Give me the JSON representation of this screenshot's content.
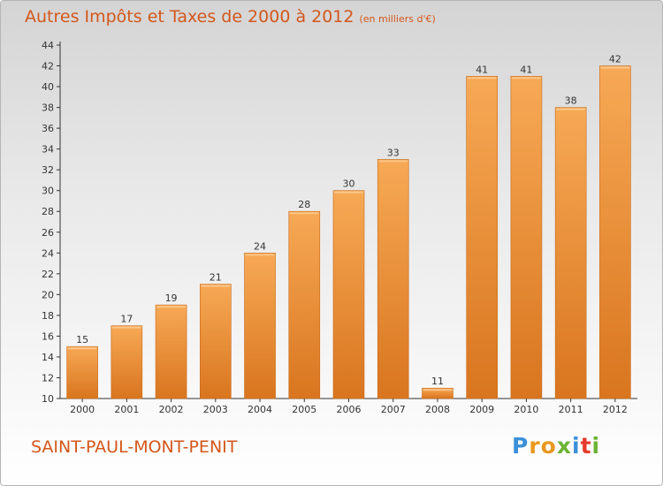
{
  "title": "Autres Impôts et Taxes de 2000 à 2012",
  "unit_note": "(en milliers d'€)",
  "commune": "SAINT-PAUL-MONT-PENIT",
  "logo": {
    "text": "Proxiti",
    "letter_colors": [
      "#3a8fd8",
      "#e9981f",
      "#e9981f",
      "#6cb335",
      "#3a8fd8",
      "#e53b2a",
      "#6cb335"
    ]
  },
  "colors": {
    "bar_light": "#f7a955",
    "bar_dark": "#d9751f",
    "text_accent": "#d4571b",
    "axis": "#333333"
  },
  "chart_data": {
    "type": "bar",
    "title": "Autres Impôts et Taxes de 2000 à 2012",
    "xlabel": "",
    "ylabel": "",
    "categories": [
      "2000",
      "2001",
      "2002",
      "2003",
      "2004",
      "2005",
      "2006",
      "2007",
      "2008",
      "2009",
      "2010",
      "2011",
      "2012"
    ],
    "values": [
      15,
      17,
      19,
      21,
      24,
      28,
      30,
      33,
      11,
      41,
      41,
      38,
      42
    ],
    "ylim": [
      10,
      44
    ],
    "y_ticks": [
      10,
      12,
      14,
      16,
      18,
      20,
      22,
      24,
      26,
      28,
      30,
      32,
      34,
      36,
      38,
      40,
      42,
      44
    ],
    "grid": false,
    "legend": "none"
  }
}
